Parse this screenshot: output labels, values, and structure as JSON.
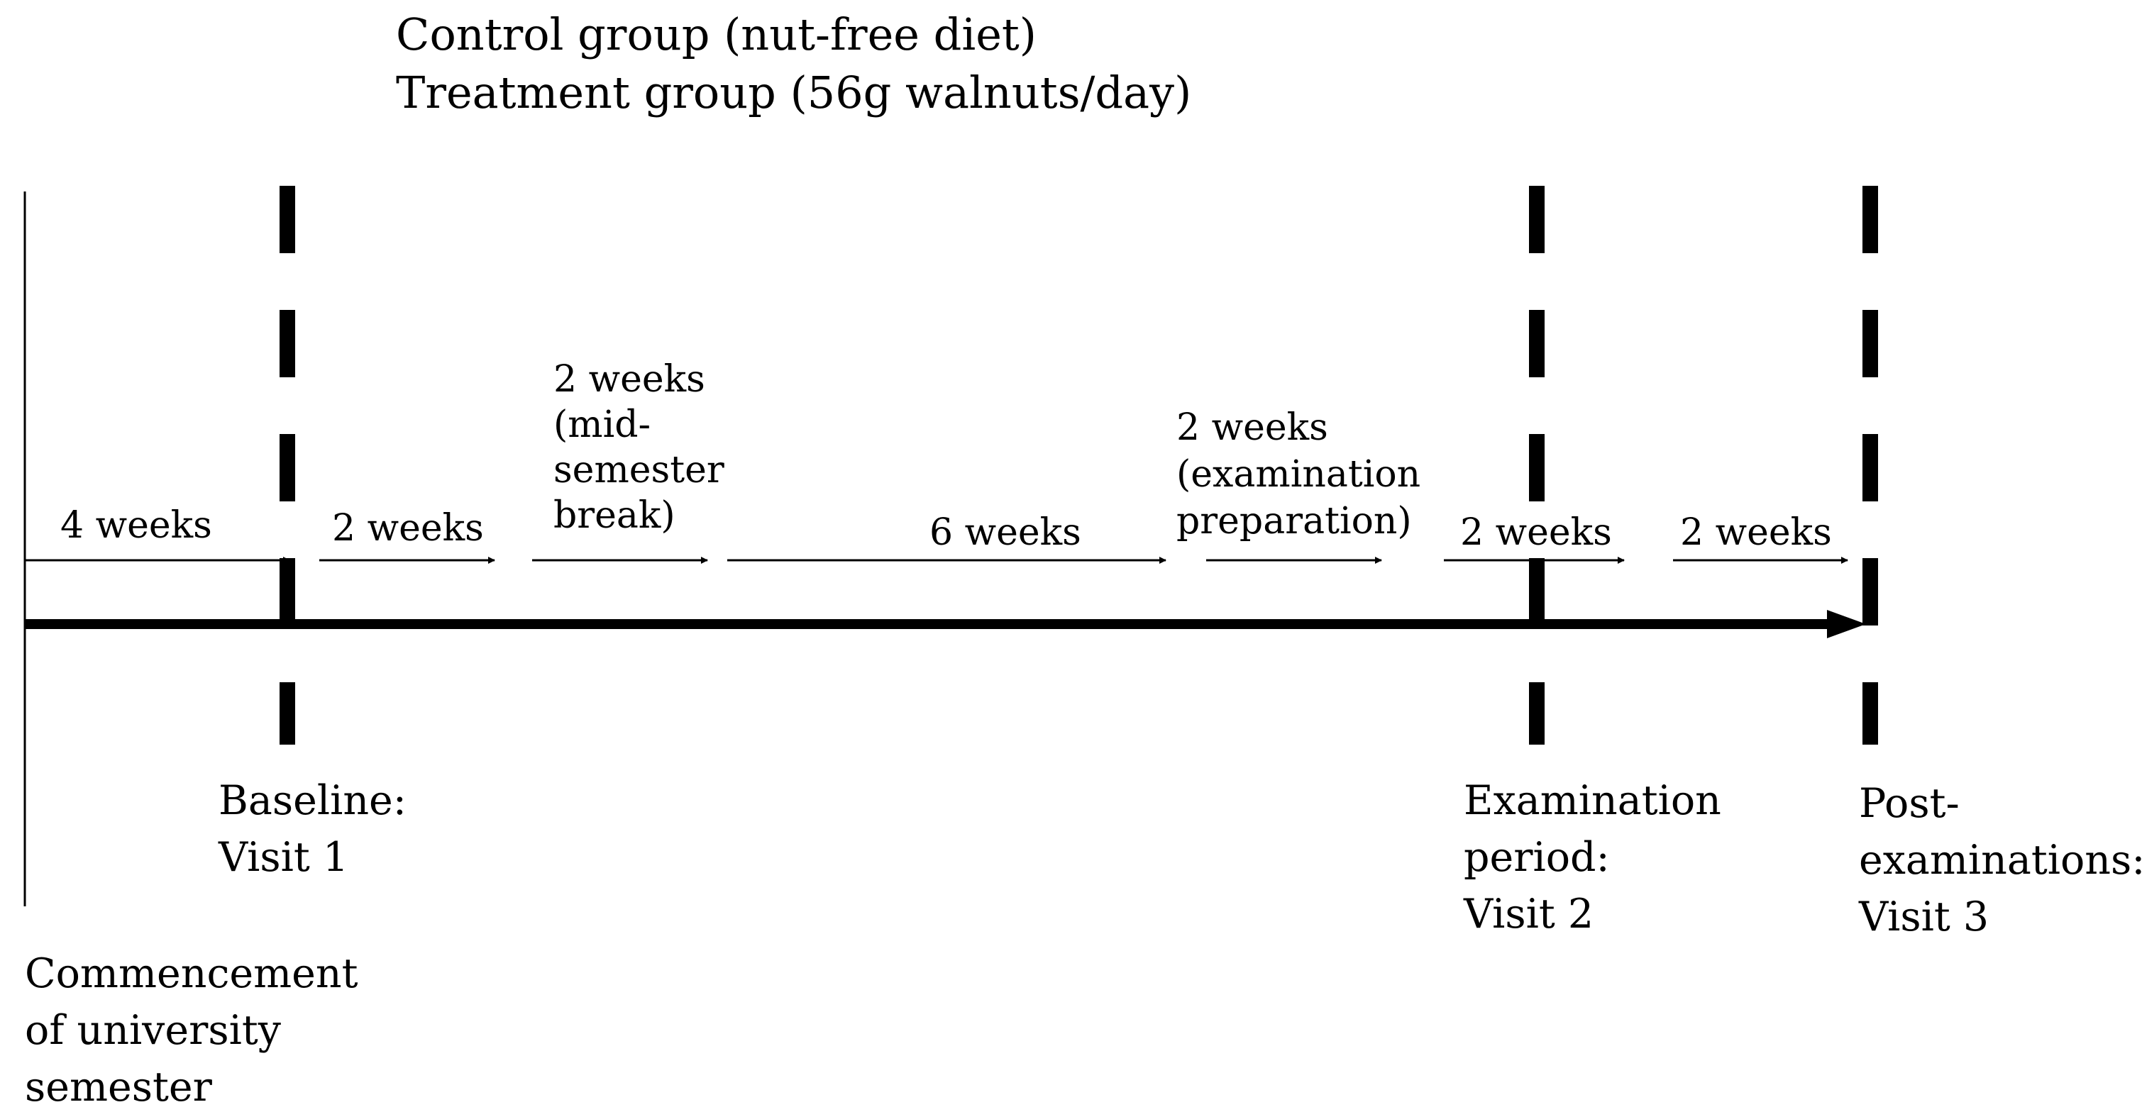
{
  "groups": {
    "control": "Control group (nut-free diet)",
    "treatment": "Treatment group (56g walnuts/day)"
  },
  "intervals": [
    {
      "id": "interval-1",
      "lines": [
        "4 weeks"
      ]
    },
    {
      "id": "interval-2",
      "lines": [
        "2 weeks"
      ]
    },
    {
      "id": "interval-3",
      "lines": [
        "2 weeks",
        "(mid-",
        "semester",
        "break)"
      ]
    },
    {
      "id": "interval-4",
      "lines": [
        "6 weeks"
      ]
    },
    {
      "id": "interval-5",
      "lines": [
        "2 weeks",
        "(examination",
        "preparation)"
      ]
    },
    {
      "id": "interval-6",
      "lines": [
        "2 weeks"
      ]
    },
    {
      "id": "interval-7",
      "lines": [
        "2 weeks"
      ]
    }
  ],
  "milestones": [
    {
      "id": "commencement",
      "lines": [
        "Commencement",
        "of university",
        "semester"
      ]
    },
    {
      "id": "visit-1",
      "lines": [
        "Baseline:",
        "Visit  1"
      ]
    },
    {
      "id": "visit-2",
      "lines": [
        "Examination",
        "period:",
        "Visit  2"
      ]
    },
    {
      "id": "visit-3",
      "lines": [
        "Post-",
        "examinations:",
        "Visit  3"
      ]
    }
  ],
  "colors": {
    "ink": "#000000",
    "background": "#ffffff"
  }
}
